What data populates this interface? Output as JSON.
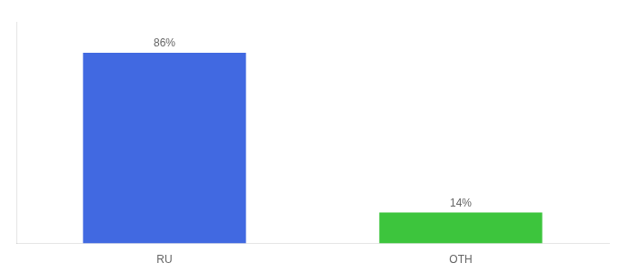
{
  "chart_data": {
    "type": "bar",
    "categories": [
      "RU",
      "OTH"
    ],
    "values": [
      86,
      14
    ],
    "value_labels": [
      "86%",
      "14%"
    ],
    "colors": [
      "#4169e1",
      "#3dc53d"
    ],
    "ylim": [
      0,
      100
    ],
    "grid": false,
    "tick_labels": "x"
  }
}
